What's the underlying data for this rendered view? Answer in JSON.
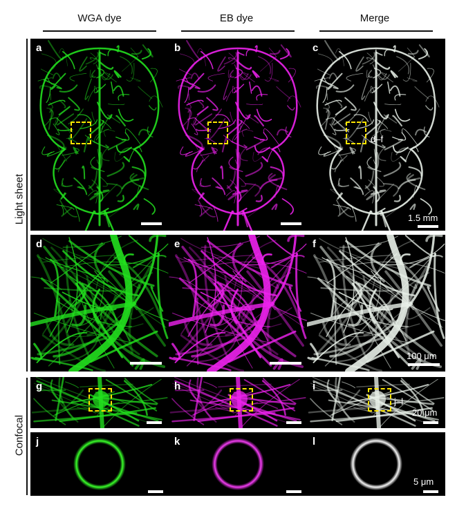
{
  "columns": [
    "WGA dye",
    "EB dye",
    "Merge"
  ],
  "rows": [
    "Light sheet",
    "Confocal"
  ],
  "panels": {
    "a": "a",
    "b": "b",
    "c": "c",
    "d": "d",
    "e": "e",
    "f": "f",
    "g": "g",
    "h": "h",
    "i": "i",
    "j": "j",
    "k": "k",
    "l": "l"
  },
  "scale_bars": {
    "brain": "1.5 mm",
    "zoom": "100 μm",
    "confocal": "20 μm",
    "cell": "5 μm"
  },
  "box_refs": {
    "c": "d–f",
    "i": "j–l"
  },
  "colors": {
    "wga": "#22e01e",
    "eb": "#ee22ee",
    "merge": "#e8f0e8",
    "box": "#ffe600"
  }
}
